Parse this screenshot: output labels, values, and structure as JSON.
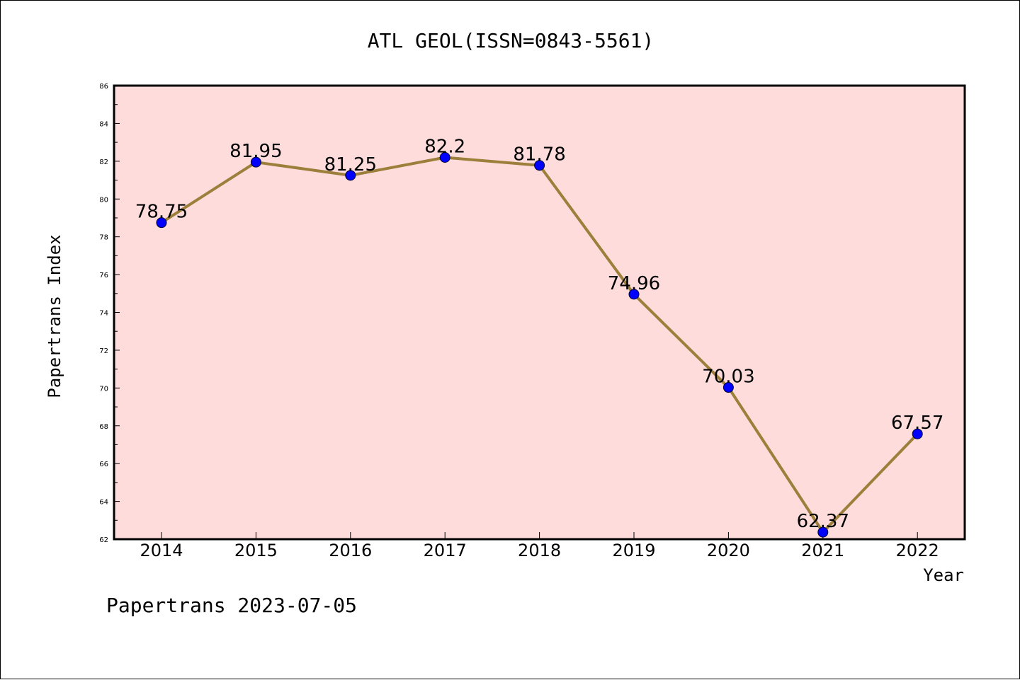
{
  "chart_data": {
    "type": "line",
    "title": "ATL GEOL(ISSN=0843-5561)",
    "xlabel": "Year",
    "ylabel": "Papertrans Index",
    "footer": "Papertrans 2023-07-05",
    "categories": [
      "2014",
      "2015",
      "2016",
      "2017",
      "2018",
      "2019",
      "2020",
      "2021",
      "2022"
    ],
    "series": [
      {
        "values": [
          78.75,
          81.95,
          81.25,
          82.2,
          81.78,
          74.96,
          70.03,
          62.37,
          67.57
        ],
        "labels": [
          "78.75",
          "81.95",
          "81.25",
          "82.2",
          "81.78",
          "74.96",
          "70.03",
          "62.37",
          "67.57"
        ]
      }
    ],
    "ylim": [
      62,
      86
    ],
    "yticks": [
      "62",
      "64",
      "66",
      "68",
      "70",
      "72",
      "74",
      "76",
      "78",
      "80",
      "82",
      "84",
      "86"
    ],
    "grid": false,
    "legend": "none",
    "colors": {
      "plot_background": "#ffdcdc",
      "line": "#9b7f3a",
      "marker": "#0000ff",
      "axes": "#000000"
    }
  }
}
